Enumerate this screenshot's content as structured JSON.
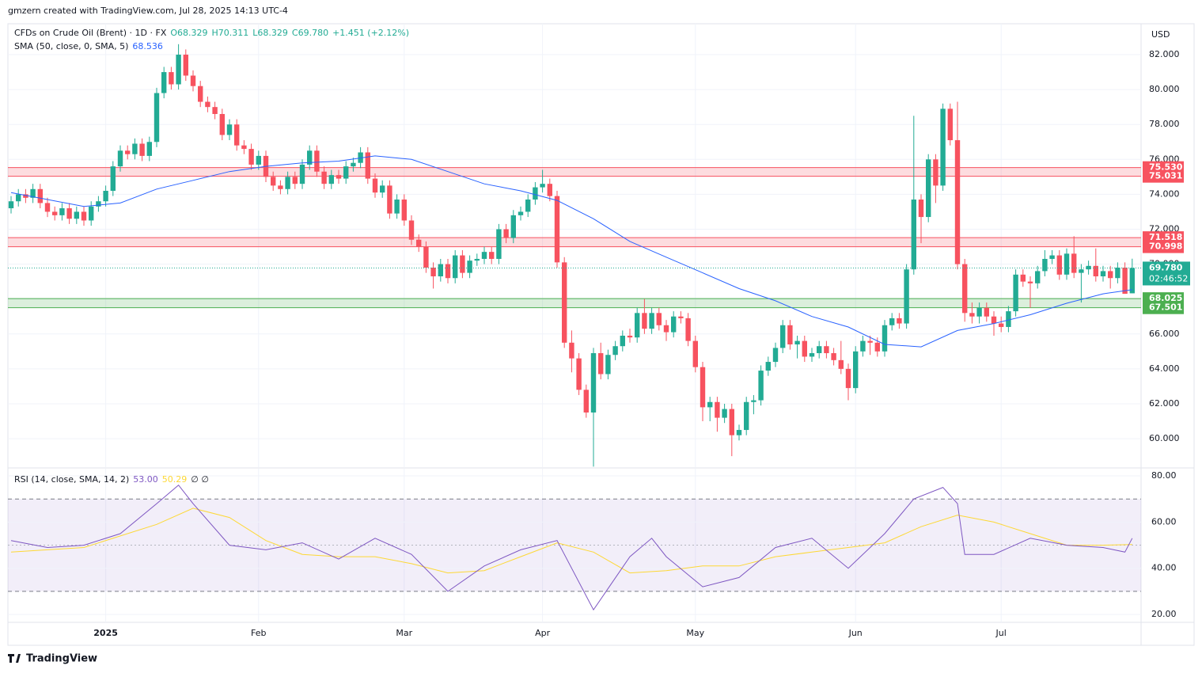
{
  "attribution": "gmzern created with TradingView.com, Jul 28, 2025 14:13 UTC-4",
  "footer": "TradingView",
  "chart_data": {
    "type": "candlestick",
    "title": "CFDs on Crude Oil (Brent) · 1D · FX",
    "ohlc_legend": [
      "O68.329",
      "H70.311",
      "L68.329",
      "C69.780",
      "+1.451 (+2.12%)"
    ],
    "currency": "USD",
    "up_color": "#22ab94",
    "down_color": "#f7525f",
    "grid": true,
    "ylim": [
      58.37,
      83.77
    ],
    "yticks": [
      {
        "value": 60,
        "label": "60.000"
      },
      {
        "value": 62,
        "label": "62.000"
      },
      {
        "value": 64,
        "label": "64.000"
      },
      {
        "value": 66,
        "label": "66.000"
      },
      {
        "value": 68,
        "label": "68.000"
      },
      {
        "value": 70,
        "label": "70.000"
      },
      {
        "value": 72,
        "label": "72.000"
      },
      {
        "value": 74,
        "label": "74.000"
      },
      {
        "value": 76,
        "label": "76.000"
      },
      {
        "value": 78,
        "label": "78.000"
      },
      {
        "value": 80,
        "label": "80.000"
      },
      {
        "value": 82,
        "label": "82.000"
      }
    ],
    "categories": [
      null,
      null,
      null,
      null,
      null,
      null,
      null,
      null,
      null,
      null,
      null,
      null,
      null,
      "2025",
      null,
      null,
      null,
      null,
      null,
      null,
      null,
      null,
      null,
      null,
      null,
      null,
      null,
      null,
      null,
      null,
      null,
      null,
      null,
      null,
      "Feb",
      null,
      null,
      null,
      null,
      null,
      null,
      null,
      null,
      null,
      null,
      null,
      null,
      null,
      null,
      null,
      null,
      null,
      null,
      null,
      "Mar",
      null,
      null,
      null,
      null,
      null,
      null,
      null,
      null,
      null,
      null,
      null,
      null,
      null,
      null,
      null,
      null,
      null,
      null,
      "Apr",
      null,
      null,
      null,
      null,
      null,
      null,
      null,
      null,
      null,
      null,
      null,
      null,
      null,
      null,
      null,
      null,
      null,
      null,
      null,
      null,
      "May",
      null,
      null,
      null,
      null,
      null,
      null,
      null,
      null,
      null,
      null,
      null,
      null,
      null,
      null,
      null,
      null,
      null,
      null,
      null,
      null,
      null,
      "Jun",
      null,
      null,
      null,
      null,
      null,
      null,
      null,
      null,
      null,
      null,
      null,
      null,
      null,
      null,
      null,
      null,
      null,
      null,
      null,
      "Jul",
      null,
      null,
      null,
      null,
      null,
      null,
      null,
      null,
      null,
      null,
      null,
      null,
      null,
      null,
      null,
      null,
      null,
      null
    ],
    "ohlc": [
      [
        73.2,
        73.9,
        72.9,
        73.6
      ],
      [
        73.6,
        74.3,
        73.3,
        74.0
      ],
      [
        74.0,
        74.3,
        73.5,
        73.8
      ],
      [
        73.8,
        74.6,
        73.5,
        74.3
      ],
      [
        74.3,
        74.6,
        73.2,
        73.5
      ],
      [
        73.5,
        73.8,
        72.7,
        73.0
      ],
      [
        73.0,
        73.3,
        72.5,
        72.8
      ],
      [
        72.8,
        73.5,
        72.5,
        73.2
      ],
      [
        73.2,
        73.5,
        72.3,
        72.6
      ],
      [
        72.6,
        73.3,
        72.3,
        73.0
      ],
      [
        73.0,
        73.3,
        72.2,
        72.5
      ],
      [
        72.5,
        73.6,
        72.2,
        73.3
      ],
      [
        73.3,
        73.9,
        73.0,
        73.6
      ],
      [
        73.6,
        74.5,
        73.3,
        74.2
      ],
      [
        74.2,
        75.9,
        73.9,
        75.6
      ],
      [
        75.6,
        76.8,
        75.3,
        76.5
      ],
      [
        76.5,
        76.8,
        76.0,
        76.3
      ],
      [
        76.3,
        77.2,
        76.0,
        76.9
      ],
      [
        76.9,
        77.2,
        75.9,
        76.2
      ],
      [
        76.2,
        77.3,
        75.9,
        77.0
      ],
      [
        77.0,
        80.1,
        76.7,
        79.8
      ],
      [
        79.8,
        81.3,
        79.5,
        81.0
      ],
      [
        81.0,
        81.3,
        80.0,
        80.3
      ],
      [
        80.3,
        82.6,
        80.0,
        82.0
      ],
      [
        82.0,
        82.3,
        80.5,
        80.8
      ],
      [
        80.8,
        81.1,
        79.9,
        80.2
      ],
      [
        80.2,
        80.5,
        79.0,
        79.3
      ],
      [
        79.3,
        79.6,
        78.7,
        79.0
      ],
      [
        79.0,
        79.3,
        78.3,
        78.6
      ],
      [
        78.6,
        78.9,
        77.1,
        77.4
      ],
      [
        77.4,
        78.3,
        77.1,
        78.0
      ],
      [
        78.0,
        78.3,
        76.5,
        76.8
      ],
      [
        76.8,
        77.1,
        76.3,
        76.6
      ],
      [
        76.6,
        76.9,
        75.4,
        75.7
      ],
      [
        75.7,
        76.5,
        75.4,
        76.2
      ],
      [
        76.2,
        76.5,
        74.7,
        75.0
      ],
      [
        75.0,
        75.3,
        74.2,
        74.5
      ],
      [
        74.5,
        74.8,
        74.0,
        74.3
      ],
      [
        74.3,
        75.3,
        74.0,
        75.0
      ],
      [
        75.0,
        75.3,
        74.3,
        74.6
      ],
      [
        74.6,
        76.0,
        74.3,
        75.7
      ],
      [
        75.7,
        76.8,
        75.4,
        76.5
      ],
      [
        76.5,
        76.8,
        75.0,
        75.3
      ],
      [
        75.3,
        75.6,
        74.3,
        74.6
      ],
      [
        74.6,
        75.4,
        74.3,
        75.1
      ],
      [
        75.1,
        75.4,
        74.6,
        74.9
      ],
      [
        74.9,
        75.9,
        74.6,
        75.6
      ],
      [
        75.6,
        76.1,
        75.3,
        75.8
      ],
      [
        75.8,
        76.7,
        75.5,
        76.4
      ],
      [
        76.4,
        76.7,
        74.6,
        74.9
      ],
      [
        74.9,
        75.2,
        73.8,
        74.1
      ],
      [
        74.1,
        74.8,
        73.8,
        74.5
      ],
      [
        74.5,
        74.8,
        72.6,
        72.9
      ],
      [
        72.9,
        74.0,
        72.6,
        73.7
      ],
      [
        73.7,
        74.0,
        72.2,
        72.5
      ],
      [
        72.5,
        72.8,
        71.1,
        71.4
      ],
      [
        71.4,
        71.7,
        70.7,
        71.0
      ],
      [
        71.0,
        71.3,
        69.5,
        69.8
      ],
      [
        69.8,
        70.1,
        68.6,
        69.3
      ],
      [
        69.3,
        70.3,
        69.0,
        70.0
      ],
      [
        70.0,
        70.3,
        68.9,
        69.2
      ],
      [
        69.2,
        70.8,
        68.9,
        70.5
      ],
      [
        70.5,
        70.8,
        69.2,
        69.5
      ],
      [
        69.5,
        70.5,
        69.2,
        70.2
      ],
      [
        70.2,
        70.6,
        69.9,
        70.3
      ],
      [
        70.3,
        71.0,
        70.0,
        70.7
      ],
      [
        70.7,
        71.0,
        70.0,
        70.3
      ],
      [
        70.3,
        72.3,
        70.0,
        72.0
      ],
      [
        72.0,
        72.3,
        71.2,
        71.5
      ],
      [
        71.5,
        73.1,
        71.2,
        72.8
      ],
      [
        72.8,
        73.3,
        72.5,
        73.0
      ],
      [
        73.0,
        74.0,
        72.7,
        73.7
      ],
      [
        73.7,
        74.7,
        73.4,
        74.4
      ],
      [
        74.4,
        75.4,
        74.1,
        74.6
      ],
      [
        74.6,
        74.9,
        73.6,
        73.9
      ],
      [
        73.9,
        74.2,
        69.8,
        70.1
      ],
      [
        70.1,
        70.4,
        65.2,
        65.5
      ],
      [
        65.5,
        66.2,
        63.8,
        64.6
      ],
      [
        64.6,
        64.9,
        62.5,
        62.8
      ],
      [
        62.8,
        63.1,
        61.2,
        61.5
      ],
      [
        61.5,
        65.2,
        58.4,
        64.9
      ],
      [
        64.9,
        65.5,
        63.4,
        63.7
      ],
      [
        63.7,
        65.1,
        63.4,
        64.8
      ],
      [
        64.8,
        65.6,
        64.5,
        65.3
      ],
      [
        65.3,
        66.2,
        65.0,
        65.9
      ],
      [
        65.9,
        66.3,
        65.5,
        65.8
      ],
      [
        65.8,
        67.5,
        65.5,
        67.2
      ],
      [
        67.2,
        68.0,
        66.0,
        66.3
      ],
      [
        66.3,
        67.5,
        66.0,
        67.2
      ],
      [
        67.2,
        67.5,
        66.2,
        66.5
      ],
      [
        66.5,
        66.8,
        65.6,
        66.1
      ],
      [
        66.1,
        67.3,
        65.8,
        67.0
      ],
      [
        67.0,
        67.3,
        66.6,
        66.9
      ],
      [
        66.9,
        67.2,
        65.3,
        65.6
      ],
      [
        65.6,
        65.9,
        63.8,
        64.1
      ],
      [
        64.1,
        64.4,
        61.0,
        61.8
      ],
      [
        61.8,
        62.4,
        61.0,
        62.1
      ],
      [
        62.1,
        62.4,
        60.4,
        61.2
      ],
      [
        61.2,
        62.0,
        60.9,
        61.7
      ],
      [
        61.7,
        62.0,
        59.0,
        60.2
      ],
      [
        60.2,
        60.8,
        59.9,
        60.5
      ],
      [
        60.5,
        62.4,
        60.2,
        62.1
      ],
      [
        62.1,
        62.5,
        61.4,
        62.2
      ],
      [
        62.2,
        64.2,
        61.9,
        63.9
      ],
      [
        63.9,
        64.7,
        63.6,
        64.4
      ],
      [
        64.4,
        65.5,
        64.1,
        65.2
      ],
      [
        65.2,
        66.8,
        64.9,
        66.5
      ],
      [
        66.5,
        66.8,
        65.1,
        65.4
      ],
      [
        65.4,
        65.9,
        64.6,
        65.6
      ],
      [
        65.6,
        65.9,
        64.4,
        64.7
      ],
      [
        64.7,
        65.2,
        64.4,
        64.9
      ],
      [
        64.9,
        65.6,
        64.6,
        65.3
      ],
      [
        65.3,
        65.6,
        64.6,
        64.9
      ],
      [
        64.9,
        65.2,
        64.2,
        64.5
      ],
      [
        64.5,
        65.6,
        63.7,
        64.0
      ],
      [
        64.0,
        64.3,
        62.2,
        62.9
      ],
      [
        62.9,
        65.3,
        62.6,
        65.0
      ],
      [
        65.0,
        65.9,
        64.7,
        65.6
      ],
      [
        65.6,
        65.9,
        64.8,
        65.5
      ],
      [
        65.5,
        65.8,
        64.7,
        65.0
      ],
      [
        65.0,
        66.8,
        64.7,
        66.5
      ],
      [
        66.5,
        67.2,
        66.2,
        66.9
      ],
      [
        66.9,
        67.2,
        66.3,
        66.6
      ],
      [
        66.6,
        70.0,
        66.3,
        69.7
      ],
      [
        69.7,
        78.5,
        69.4,
        73.7
      ],
      [
        73.7,
        74.0,
        71.2,
        72.7
      ],
      [
        72.7,
        76.3,
        72.4,
        76.0
      ],
      [
        76.0,
        76.3,
        73.5,
        74.5
      ],
      [
        74.5,
        79.2,
        74.2,
        78.9
      ],
      [
        78.9,
        79.2,
        76.8,
        77.1
      ],
      [
        77.1,
        79.3,
        69.7,
        70.0
      ],
      [
        70.0,
        70.3,
        66.7,
        67.2
      ],
      [
        67.2,
        67.8,
        66.6,
        67.0
      ],
      [
        67.0,
        67.8,
        66.6,
        67.5
      ],
      [
        67.5,
        67.8,
        66.7,
        67.0
      ],
      [
        67.0,
        67.3,
        65.9,
        66.6
      ],
      [
        66.6,
        67.0,
        66.1,
        66.4
      ],
      [
        66.4,
        67.6,
        66.1,
        67.3
      ],
      [
        67.3,
        69.7,
        67.0,
        69.4
      ],
      [
        69.4,
        69.7,
        68.7,
        69.0
      ],
      [
        69.0,
        69.3,
        67.5,
        68.9
      ],
      [
        68.9,
        69.9,
        68.6,
        69.6
      ],
      [
        69.6,
        70.8,
        69.3,
        70.3
      ],
      [
        70.3,
        70.8,
        70.0,
        70.5
      ],
      [
        70.5,
        70.8,
        69.1,
        69.4
      ],
      [
        69.4,
        70.9,
        69.1,
        70.6
      ],
      [
        70.6,
        71.6,
        69.2,
        69.5
      ],
      [
        69.5,
        70.0,
        67.8,
        69.7
      ],
      [
        69.7,
        70.2,
        69.4,
        69.9
      ],
      [
        69.9,
        70.9,
        69.0,
        69.3
      ],
      [
        69.3,
        69.9,
        69.0,
        69.6
      ],
      [
        69.6,
        69.9,
        68.6,
        69.2
      ],
      [
        69.2,
        70.1,
        68.9,
        69.8
      ],
      [
        69.8,
        70.1,
        68.3,
        68.3
      ],
      [
        68.329,
        70.311,
        68.329,
        69.78
      ]
    ],
    "sma": {
      "name": "SMA (50, close, 0, SMA, 5)",
      "value_label": "68.536",
      "color": "#2962ff",
      "x": [
        0,
        5,
        10,
        15,
        20,
        25,
        30,
        35,
        40,
        45,
        50,
        55,
        60,
        65,
        70,
        75,
        80,
        85,
        90,
        95,
        100,
        105,
        110,
        115,
        120,
        125,
        130,
        135,
        140,
        145,
        150,
        154
      ],
      "values": [
        74.1,
        73.7,
        73.3,
        73.5,
        74.3,
        74.8,
        75.3,
        75.6,
        75.8,
        75.9,
        76.2,
        76.0,
        75.3,
        74.6,
        74.2,
        73.65,
        72.6,
        71.3,
        70.4,
        69.5,
        68.6,
        67.9,
        67.0,
        66.4,
        65.4,
        65.26,
        66.2,
        66.6,
        67.1,
        67.76,
        68.3,
        68.536
      ]
    },
    "zones": [
      {
        "values": [
          75.53,
          75.031
        ],
        "value_labels": [
          "75.530",
          "75.031"
        ],
        "color": "#f7525f"
      },
      {
        "values": [
          71.518,
          70.998
        ],
        "value_labels": [
          "71.518",
          "70.998"
        ],
        "color": "#f7525f"
      },
      {
        "values": [
          68.025,
          67.501
        ],
        "value_labels": [
          "68.025",
          "67.501"
        ],
        "color": "#4caf50"
      }
    ],
    "last_price": {
      "value": 69.78,
      "label": "69.780",
      "countdown": "02:46:52",
      "color": "#22ab94"
    },
    "rsi": {
      "title": "RSI (14, close, SMA, 14, 2)",
      "value_label": "53.00",
      "sma_label": "50.29",
      "extra": "∅ ∅",
      "ylim": [
        16.6,
        83.1
      ],
      "yticks": [
        {
          "value": 20,
          "label": "20.00"
        },
        {
          "value": 40,
          "label": "40.00"
        },
        {
          "value": 60,
          "label": "60.00"
        },
        {
          "value": 80,
          "label": "80.00"
        }
      ],
      "bands": [
        70,
        30
      ],
      "mid": 50,
      "line": {
        "color": "#7e57c2",
        "x": [
          0,
          5,
          10,
          15,
          20,
          23,
          25,
          30,
          35,
          40,
          45,
          50,
          55,
          60,
          65,
          70,
          75,
          80,
          85,
          88,
          90,
          95,
          100,
          105,
          110,
          115,
          120,
          124,
          128,
          130,
          131,
          135,
          140,
          145,
          150,
          153,
          154
        ],
        "values": [
          52,
          49,
          50,
          55,
          68,
          76,
          68,
          50,
          48,
          51,
          44,
          53,
          46,
          30,
          41,
          48,
          52,
          22,
          45,
          53,
          45,
          32,
          36,
          49,
          53,
          40,
          55,
          70,
          75,
          68,
          46,
          46,
          53,
          50,
          49,
          47,
          53.0
        ]
      },
      "sma": {
        "color": "#fdd835",
        "x": [
          0,
          10,
          20,
          25,
          30,
          35,
          40,
          45,
          50,
          55,
          60,
          65,
          70,
          75,
          80,
          85,
          90,
          95,
          100,
          105,
          110,
          115,
          120,
          125,
          130,
          135,
          140,
          145,
          150,
          154
        ],
        "values": [
          47,
          49,
          59,
          66,
          62,
          52,
          46,
          45,
          45,
          42,
          38,
          39,
          45,
          51,
          47,
          38,
          39,
          41,
          41,
          45,
          47,
          49,
          51,
          58,
          63,
          60,
          55,
          50,
          50,
          50.29
        ]
      }
    }
  }
}
